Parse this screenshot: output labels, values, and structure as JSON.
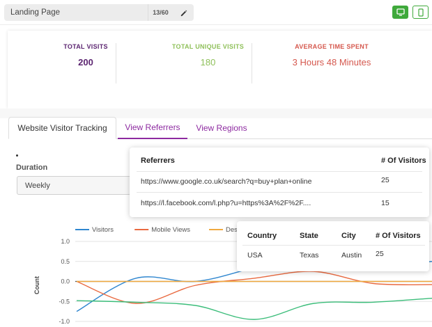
{
  "header": {
    "page_title": "Landing Page",
    "char_count": "13/60",
    "icons": {
      "edit": "pencil-icon",
      "desktop": "desktop-icon",
      "mobile": "mobile-icon"
    }
  },
  "stats": [
    {
      "label": "TOTAL VISITS",
      "value": "200",
      "color": "#5b2470"
    },
    {
      "label": "TOTAL UNIQUE VISITS",
      "value": "180",
      "color": "#8fc05a"
    },
    {
      "label": "AVERAGE TIME SPENT",
      "value": "3 Hours 48 Minutes",
      "color": "#d5584e"
    }
  ],
  "tabs": [
    {
      "label": "Website Visitor Tracking",
      "active": true
    },
    {
      "label": "View Referrers",
      "active": false
    },
    {
      "label": "View Regions",
      "active": false
    }
  ],
  "duration": {
    "label": "Duration",
    "selected": "Weekly"
  },
  "referrers_popup": {
    "headers": [
      "Referrers",
      "# Of Visitors"
    ],
    "rows": [
      [
        "https://www.google.co.uk/search?q=buy+plan+online",
        "25"
      ],
      [
        "https://l.facebook.com/l.php?u=https%3A%2F%2F....",
        "15"
      ]
    ]
  },
  "regions_popup": {
    "headers": [
      "Country",
      "State",
      "City",
      "# Of Visitors"
    ],
    "rows": [
      [
        "USA",
        "Texas",
        "Austin",
        "25"
      ]
    ]
  },
  "chart_data": {
    "type": "line",
    "ylabel": "Count",
    "xlabel": "",
    "ylim": [
      -1.0,
      1.0
    ],
    "y_ticks": [
      "1.0",
      "0.5",
      "0.0",
      "-0.5",
      "-1.0"
    ],
    "legend": [
      "Visitors",
      "Mobile Views",
      "Desktop"
    ],
    "legend_position": "top",
    "series": [
      {
        "name": "Visitors",
        "color": "#2f86cf",
        "values": [
          -0.75,
          0.08,
          0.0,
          0.35,
          0.78,
          0.38,
          0.5
        ]
      },
      {
        "name": "Mobile Views",
        "color": "#e9693f",
        "values": [
          0.0,
          -0.55,
          -0.1,
          0.08,
          0.25,
          -0.05,
          -0.08
        ]
      },
      {
        "name": "Desktop",
        "color": "#f0a93f",
        "values": [
          0.0,
          0.0,
          0.0,
          0.0,
          0.0,
          0.0,
          0.0
        ]
      },
      {
        "name": "",
        "color": "#3bbd7a",
        "values": [
          -0.48,
          -0.52,
          -0.6,
          -0.95,
          -0.55,
          -0.52,
          -0.42
        ]
      }
    ]
  }
}
